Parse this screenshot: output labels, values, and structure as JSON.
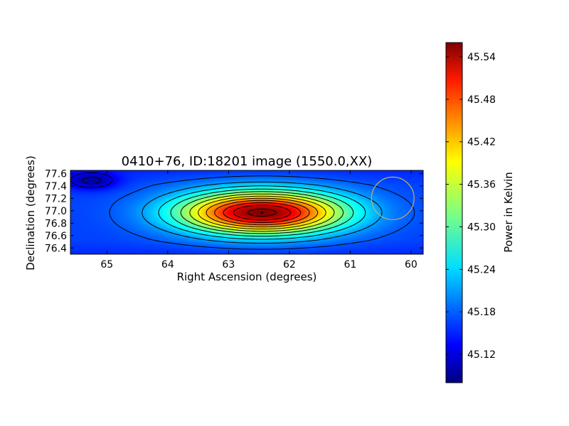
{
  "chart_data": {
    "type": "heatmap",
    "title": "0410+76, ID:18201 image (1550.0,XX)",
    "xlabel": "Right Ascension (degrees)",
    "ylabel": "Declination (degrees)",
    "xlim": [
      65.6,
      59.8
    ],
    "ylim": [
      76.3,
      77.65
    ],
    "x_ticks": [
      "65",
      "64",
      "63",
      "62",
      "61",
      "60"
    ],
    "y_ticks": [
      "77.6",
      "77.4",
      "77.2",
      "77.0",
      "76.8",
      "76.6",
      "76.4"
    ],
    "colorbar": {
      "label": "Power in Kelvin",
      "range": [
        45.08,
        45.56
      ],
      "ticks": [
        "45.12",
        "45.18",
        "45.24",
        "45.30",
        "45.36",
        "45.42",
        "45.48",
        "45.54"
      ],
      "colormap": "jet"
    },
    "peak": {
      "ra": 62.45,
      "dec": 76.97,
      "value": 45.56
    },
    "background_level": 45.17,
    "secondary_minimum": {
      "ra": 65.25,
      "dec": 77.48,
      "value": 45.09
    },
    "beam_circle": {
      "ra": 60.3,
      "dec": 77.2,
      "radius_deg": 0.35,
      "color": "#c8b460"
    },
    "contour_count": 12
  }
}
